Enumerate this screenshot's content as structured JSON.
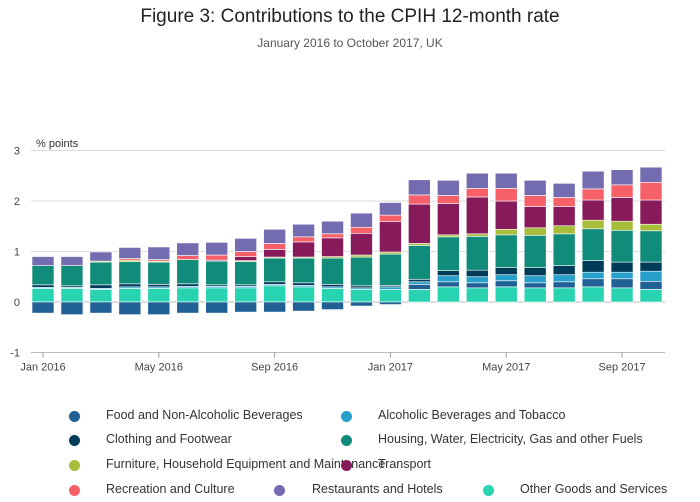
{
  "header": {
    "title": "Figure 3: Contributions to the CPIH 12-month rate",
    "subtitle": "January 2016 to October 2017, UK"
  },
  "chart_data": {
    "type": "bar",
    "stacked": true,
    "title": "Figure 3: Contributions to the CPIH 12-month rate",
    "subtitle": "January 2016 to October 2017, UK",
    "ylabel": "% points",
    "xlabel": "",
    "ylim": [
      -1,
      3
    ],
    "yticks": [
      -1,
      0,
      1,
      2,
      3
    ],
    "grid": true,
    "legend_position": "bottom",
    "x_tick_labels": [
      "Jan 2016",
      "May 2016",
      "Sep 2016",
      "Jan 2017",
      "May 2017",
      "Sep 2017"
    ],
    "categories": [
      "Jan 2016",
      "Feb 2016",
      "Mar 2016",
      "Apr 2016",
      "May 2016",
      "Jun 2016",
      "Jul 2016",
      "Aug 2016",
      "Sep 2016",
      "Oct 2016",
      "Nov 2016",
      "Dec 2016",
      "Jan 2017",
      "Feb 2017",
      "Mar 2017",
      "Apr 2017",
      "May 2017",
      "Jun 2017",
      "Jul 2017",
      "Aug 2017",
      "Sep 2017",
      "Oct 2017"
    ],
    "series": [
      {
        "name": "Other Goods and Services",
        "color": "#27d3b0",
        "values": [
          0.27,
          0.27,
          0.25,
          0.27,
          0.27,
          0.28,
          0.28,
          0.28,
          0.32,
          0.3,
          0.27,
          0.25,
          0.25,
          0.25,
          0.3,
          0.28,
          0.3,
          0.28,
          0.28,
          0.3,
          0.28,
          0.25
        ]
      },
      {
        "name": "Food and Non-Alcoholic Beverages",
        "color": "#206095",
        "values": [
          -0.22,
          -0.25,
          -0.22,
          -0.25,
          -0.25,
          -0.22,
          -0.22,
          -0.2,
          -0.2,
          -0.18,
          -0.15,
          -0.08,
          -0.05,
          0.1,
          0.1,
          0.1,
          0.12,
          0.1,
          0.12,
          0.16,
          0.18,
          0.16
        ]
      },
      {
        "name": "Alcoholic Beverages and Tobacco",
        "color": "#27a0cc",
        "values": [
          0.02,
          0.02,
          0.02,
          0.03,
          0.03,
          0.03,
          0.03,
          0.03,
          0.03,
          0.03,
          0.03,
          0.03,
          0.05,
          0.05,
          0.12,
          0.12,
          0.12,
          0.14,
          0.14,
          0.13,
          0.13,
          0.2
        ]
      },
      {
        "name": "Clothing and Footwear",
        "color": "#003c57",
        "values": [
          0.05,
          0.03,
          0.07,
          0.06,
          0.05,
          0.05,
          0.03,
          0.03,
          0.05,
          0.05,
          0.05,
          0.04,
          0.03,
          0.05,
          0.1,
          0.13,
          0.14,
          0.16,
          0.18,
          0.23,
          0.2,
          0.18
        ]
      },
      {
        "name": "Housing, Water, Electricity, Gas and other Fuels",
        "color": "#118c7b",
        "values": [
          0.38,
          0.4,
          0.45,
          0.44,
          0.44,
          0.48,
          0.47,
          0.46,
          0.47,
          0.49,
          0.52,
          0.57,
          0.62,
          0.67,
          0.67,
          0.67,
          0.65,
          0.64,
          0.63,
          0.63,
          0.63,
          0.62
        ]
      },
      {
        "name": "Furniture, Household Equipment and Maintenance",
        "color": "#a8bd3a",
        "values": [
          0.0,
          0.0,
          0.02,
          0.03,
          0.02,
          0.0,
          0.0,
          0.02,
          0.02,
          0.02,
          0.03,
          0.04,
          0.04,
          0.04,
          0.04,
          0.05,
          0.11,
          0.15,
          0.16,
          0.17,
          0.18,
          0.13
        ]
      },
      {
        "name": "Transport",
        "color": "#871a5b",
        "values": [
          0.0,
          0.0,
          0.0,
          0.0,
          0.0,
          0.0,
          0.02,
          0.08,
          0.15,
          0.3,
          0.37,
          0.43,
          0.6,
          0.78,
          0.62,
          0.73,
          0.56,
          0.42,
          0.38,
          0.4,
          0.47,
          0.48
        ]
      },
      {
        "name": "Recreation and Culture",
        "color": "#f66068",
        "values": [
          0.0,
          0.0,
          0.0,
          0.03,
          0.03,
          0.08,
          0.1,
          0.1,
          0.12,
          0.1,
          0.08,
          0.12,
          0.13,
          0.18,
          0.16,
          0.17,
          0.25,
          0.22,
          0.18,
          0.22,
          0.25,
          0.35
        ]
      },
      {
        "name": "Restaurants and Hotels",
        "color": "#746cb1",
        "values": [
          0.18,
          0.18,
          0.18,
          0.22,
          0.25,
          0.25,
          0.25,
          0.26,
          0.28,
          0.25,
          0.25,
          0.28,
          0.25,
          0.3,
          0.3,
          0.3,
          0.3,
          0.3,
          0.28,
          0.35,
          0.3,
          0.3
        ]
      }
    ],
    "legend_order": [
      "Food and Non-Alcoholic Beverages",
      "Alcoholic Beverages and Tobacco",
      "Clothing and Footwear",
      "Housing, Water, Electricity, Gas and other Fuels",
      "Furniture, Household Equipment and Maintenance",
      "Transport",
      "Recreation and Culture",
      "Restaurants and Hotels",
      "Other Goods and Services"
    ]
  }
}
